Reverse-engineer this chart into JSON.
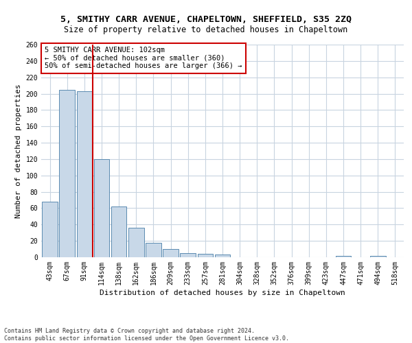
{
  "title": "5, SMITHY CARR AVENUE, CHAPELTOWN, SHEFFIELD, S35 2ZQ",
  "subtitle": "Size of property relative to detached houses in Chapeltown",
  "xlabel": "Distribution of detached houses by size in Chapeltown",
  "ylabel": "Number of detached properties",
  "footer_line1": "Contains HM Land Registry data © Crown copyright and database right 2024.",
  "footer_line2": "Contains public sector information licensed under the Open Government Licence v3.0.",
  "bar_color": "#c8d8e8",
  "bar_edge_color": "#5a8ab0",
  "grid_color": "#c8d4e0",
  "annotation_box_color": "#cc0000",
  "vline_color": "#cc0000",
  "categories": [
    "43sqm",
    "67sqm",
    "91sqm",
    "114sqm",
    "138sqm",
    "162sqm",
    "186sqm",
    "209sqm",
    "233sqm",
    "257sqm",
    "281sqm",
    "304sqm",
    "328sqm",
    "352sqm",
    "376sqm",
    "399sqm",
    "423sqm",
    "447sqm",
    "471sqm",
    "494sqm",
    "518sqm"
  ],
  "values": [
    68,
    205,
    203,
    120,
    62,
    36,
    18,
    10,
    5,
    4,
    3,
    0,
    0,
    0,
    0,
    0,
    0,
    2,
    0,
    2,
    0
  ],
  "vline_position": 2.5,
  "annotation_line1": "5 SMITHY CARR AVENUE: 102sqm",
  "annotation_line2": "← 50% of detached houses are smaller (360)",
  "annotation_line3": "50% of semi-detached houses are larger (366) →",
  "ylim": [
    0,
    260
  ],
  "yticks": [
    0,
    20,
    40,
    60,
    80,
    100,
    120,
    140,
    160,
    180,
    200,
    220,
    240,
    260
  ],
  "title_fontsize": 9.5,
  "subtitle_fontsize": 8.5,
  "xlabel_fontsize": 8,
  "ylabel_fontsize": 8,
  "tick_fontsize": 7,
  "annotation_fontsize": 7.5,
  "footer_fontsize": 6
}
